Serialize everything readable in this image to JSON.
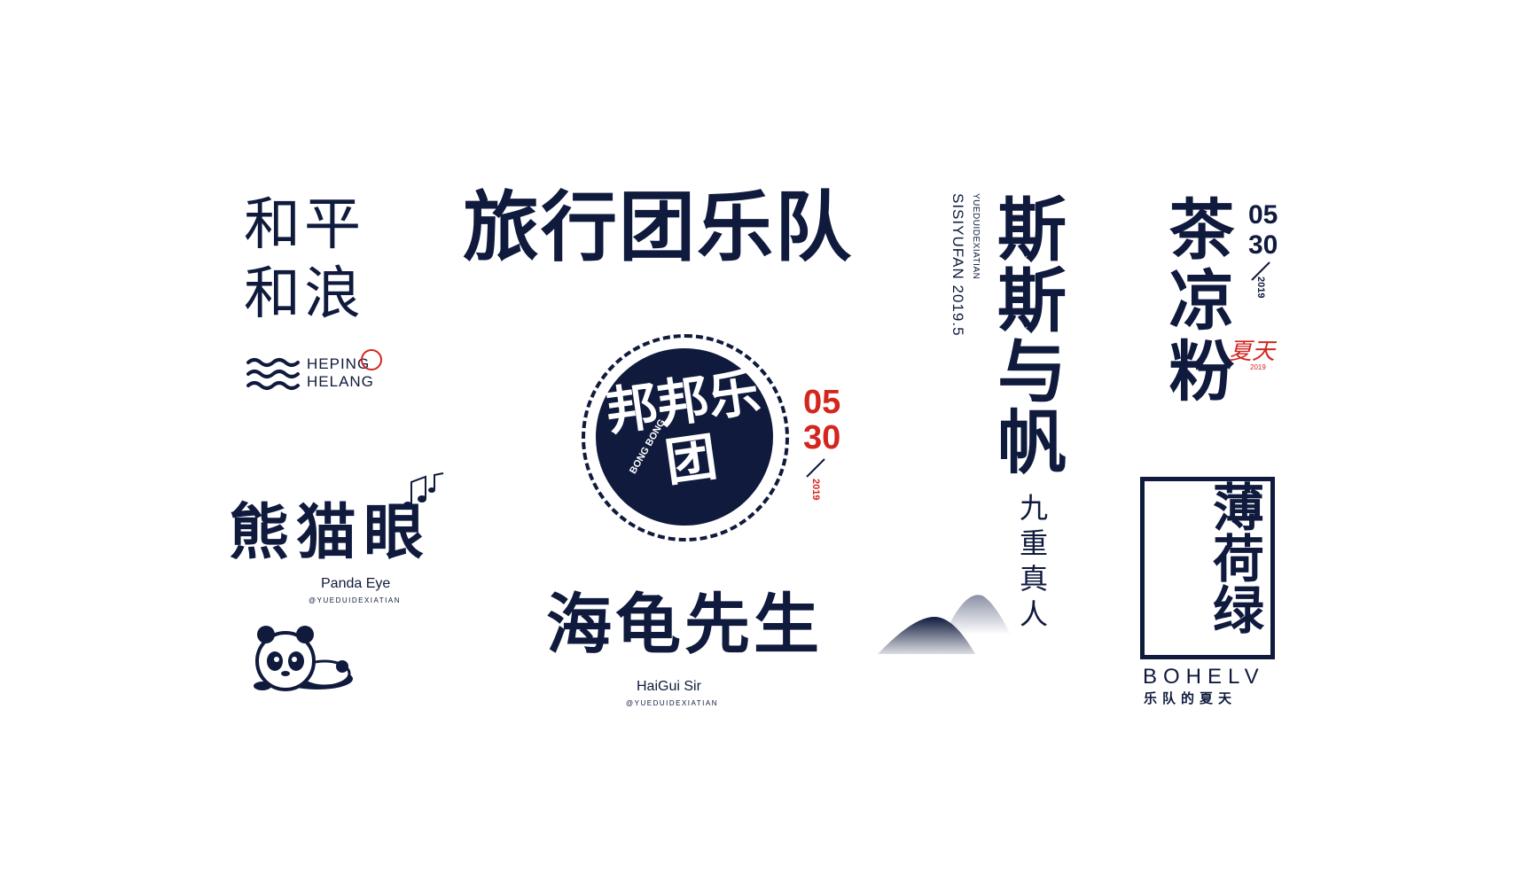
{
  "colors": {
    "navy": "#0f1a3d",
    "accent_red": "#d3261f",
    "background": "#ffffff"
  },
  "heping": {
    "title": "和平和浪",
    "en_line1": "HEPING",
    "en_line2": "HELANG",
    "icon": "wave-icon"
  },
  "lvxing": {
    "title": "旅行团乐队"
  },
  "sisi": {
    "title": "斯斯与帆",
    "side_line1": "YUEDUIDEXIATIAN",
    "side_line2": "SISIYUFAN 2019.5"
  },
  "chaliang": {
    "title": "茶凉粉",
    "num1": "05",
    "num2": "30",
    "year": "2019",
    "xia": "夏天",
    "xia_year": "2019"
  },
  "bangbang": {
    "title": "邦邦乐团",
    "en": "BONG BONG",
    "num1": "05",
    "num2": "30",
    "year": "2019"
  },
  "panda": {
    "title": "熊猫眼",
    "en": "Panda Eye",
    "handle": "@YUEDUIDEXIATIAN",
    "icons": [
      "music-note-icon",
      "panda-icon"
    ]
  },
  "haigui": {
    "title": "海龟先生",
    "en": "HaiGui Sir",
    "handle": "@YUEDUIDEXIATIAN"
  },
  "jiuchong": {
    "title": "九重真人",
    "icon": "mountain-icon"
  },
  "bohe": {
    "title": "薄荷绿",
    "en": "BOHELV",
    "sub": "乐队的夏天"
  }
}
